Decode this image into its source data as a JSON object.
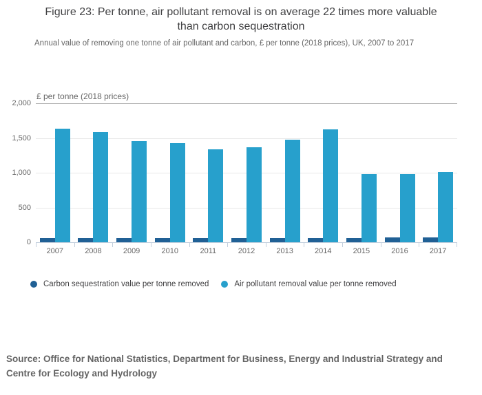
{
  "title": "Figure 23: Per tonne, air pollutant removal is on average 22 times more valuable than carbon sequestration",
  "subtitle": "Annual value of removing one tonne of air pollutant and carbon, £ per tonne (2018 prices), UK, 2007 to 2017",
  "source_lines": [
    "Source: Office for National Statistics, Department for Business, Energy and Industrial Strategy and",
    "Centre for Ecology and Hydrology"
  ],
  "colors": {
    "carbon_series": "#206095",
    "air_series": "#27a0cc",
    "axis_line": "#c2cfdd",
    "gridline": "#e7e7e7",
    "gridline_top": "#b5b5b5",
    "muted_text": "#666666",
    "dark_text": "#404042"
  },
  "chart_data": {
    "type": "bar",
    "title": "£ per tonne (2018 prices)",
    "categories": [
      "2007",
      "2008",
      "2009",
      "2010",
      "2011",
      "2012",
      "2013",
      "2014",
      "2015",
      "2016",
      "2017"
    ],
    "series": [
      {
        "name": "Carbon sequestration value per tonne removed",
        "color_key": "carbon_series",
        "values": [
          60,
          60,
          60,
          60,
          60,
          60,
          60,
          60,
          60,
          70,
          70
        ]
      },
      {
        "name": "Air pollutant removal value per tonne removed",
        "color_key": "air_series",
        "values": [
          1635,
          1580,
          1455,
          1430,
          1340,
          1365,
          1480,
          1625,
          980,
          980,
          1015
        ]
      }
    ],
    "ylabel": "£ per tonne (2018 prices)",
    "ylim": [
      0,
      2000
    ],
    "yticks": [
      0,
      500,
      1000,
      1500,
      2000
    ],
    "ytick_labels": [
      "0",
      "500",
      "1,000",
      "1,500",
      "2,000"
    ],
    "grid": true,
    "legend_position": "bottom"
  }
}
